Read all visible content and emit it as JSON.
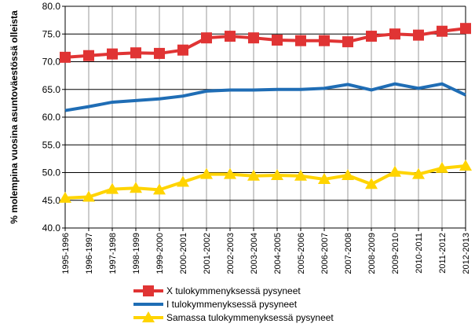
{
  "chart_data": {
    "type": "line",
    "title": "",
    "xlabel": "",
    "ylabel": "% molempina vuosina asuntoväestössä  olleista",
    "ylim": [
      40,
      80
    ],
    "yticks": [
      "40.0",
      "45.0",
      "50.0",
      "55.0",
      "60.0",
      "65.0",
      "70.0",
      "75.0",
      "80.0"
    ],
    "grid": true,
    "legend_placement": "bottom",
    "categories": [
      "1995-1996",
      "1996-1997",
      "1997-1998",
      "1998-1999",
      "1999-2000",
      "2000-2001",
      "2001-2002",
      "2002-2003",
      "2003-2004",
      "2004-2005",
      "2005-2006",
      "2006-2007",
      "2007-2008",
      "2008-2009",
      "2009-2010",
      "2010-2011",
      "2011-2012",
      "2012-2013"
    ],
    "series": [
      {
        "name": "X tulokymmenyksessä pysyneet",
        "color": "#e03434",
        "marker": "square",
        "values": [
          70.8,
          71.1,
          71.4,
          71.6,
          71.5,
          72.1,
          74.3,
          74.6,
          74.3,
          73.9,
          73.8,
          73.8,
          73.6,
          74.6,
          75.0,
          74.8,
          75.5,
          76.0
        ]
      },
      {
        "name": "I tulokymmenyksessä pysyneet",
        "color": "#1f6db5",
        "marker": "none",
        "values": [
          61.2,
          61.9,
          62.7,
          63.0,
          63.3,
          63.8,
          64.7,
          64.9,
          64.9,
          65.0,
          65.0,
          65.2,
          65.9,
          64.9,
          66.0,
          65.2,
          66.0,
          64.0
        ]
      },
      {
        "name": "Samassa tulokymmenyksessä pysyneet",
        "color": "#ffd400",
        "marker": "triangle",
        "values": [
          45.4,
          45.6,
          47.0,
          47.2,
          46.9,
          48.3,
          49.7,
          49.7,
          49.4,
          49.5,
          49.4,
          48.8,
          49.5,
          47.9,
          50.1,
          49.7,
          50.8,
          51.2
        ]
      }
    ]
  }
}
